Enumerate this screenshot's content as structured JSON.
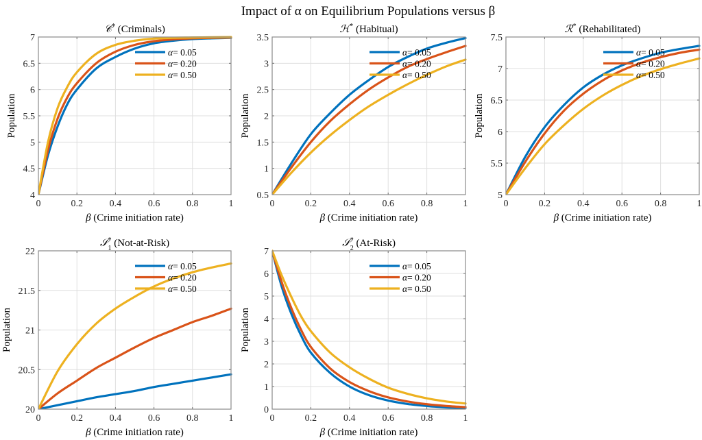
{
  "chart_data": {
    "suptitle": "Impact of α on Equilibrium Populations versus β",
    "colors": {
      "a005": "#0072BD",
      "a020": "#D95319",
      "a050": "#EDB120"
    },
    "legend_placement": "top-right",
    "panels": [
      {
        "id": "criminals",
        "type": "line",
        "title_symbol": "𝒞",
        "title_sup": "*",
        "title_sub": "",
        "title_text": " (Criminals)",
        "xlabel": "β (Crime initiation rate)",
        "ylabel": "Population",
        "xlim": [
          0,
          1
        ],
        "ylim": [
          4,
          7
        ],
        "xticks": [
          "0",
          "0.2",
          "0.4",
          "0.6",
          "0.8",
          "1"
        ],
        "yticks": [
          "4",
          "4.5",
          "5",
          "5.5",
          "6",
          "6.5",
          "7"
        ],
        "x": [
          0,
          0.05,
          0.1,
          0.15,
          0.2,
          0.3,
          0.4,
          0.5,
          0.6,
          0.7,
          0.8,
          0.9,
          1.0
        ],
        "series": [
          {
            "name": "α= 0.05",
            "color_key": "a005",
            "values": [
              4.0,
              4.75,
              5.3,
              5.72,
              6.0,
              6.4,
              6.62,
              6.78,
              6.88,
              6.93,
              6.96,
              6.975,
              6.985
            ]
          },
          {
            "name": "α= 0.20",
            "color_key": "a020",
            "values": [
              4.0,
              4.85,
              5.45,
              5.85,
              6.12,
              6.5,
              6.72,
              6.85,
              6.92,
              6.955,
              6.975,
              6.985,
              6.99
            ]
          },
          {
            "name": "α= 0.50",
            "color_key": "a050",
            "values": [
              4.0,
              5.0,
              5.65,
              6.05,
              6.33,
              6.68,
              6.85,
              6.93,
              6.97,
              6.985,
              6.99,
              6.995,
              6.998
            ]
          }
        ]
      },
      {
        "id": "habitual",
        "type": "line",
        "title_symbol": "ℋ",
        "title_sup": "*",
        "title_sub": "",
        "title_text": " (Habitual)",
        "xlabel": "β (Crime initiation rate)",
        "ylabel": "Population",
        "xlim": [
          0,
          1
        ],
        "ylim": [
          0.5,
          3.5
        ],
        "xticks": [
          "0",
          "0.2",
          "0.4",
          "0.6",
          "0.8",
          "1"
        ],
        "yticks": [
          "0.5",
          "1",
          "1.5",
          "2",
          "2.5",
          "3",
          "3.5"
        ],
        "x": [
          0,
          0.1,
          0.2,
          0.3,
          0.4,
          0.5,
          0.6,
          0.7,
          0.8,
          0.9,
          1.0
        ],
        "series": [
          {
            "name": "α= 0.05",
            "color_key": "a005",
            "values": [
              0.5,
              1.1,
              1.65,
              2.05,
              2.4,
              2.68,
              2.93,
              3.12,
              3.28,
              3.39,
              3.48
            ]
          },
          {
            "name": "α= 0.20",
            "color_key": "a020",
            "values": [
              0.5,
              1.02,
              1.5,
              1.9,
              2.22,
              2.5,
              2.73,
              2.93,
              3.08,
              3.21,
              3.33
            ]
          },
          {
            "name": "α= 0.50",
            "color_key": "a050",
            "values": [
              0.5,
              0.92,
              1.3,
              1.63,
              1.92,
              2.18,
              2.4,
              2.6,
              2.78,
              2.94,
              3.07
            ]
          }
        ]
      },
      {
        "id": "rehabilitated",
        "type": "line",
        "title_symbol": "ℛ",
        "title_sup": "*",
        "title_sub": "",
        "title_text": " (Rehabilitated)",
        "xlabel": "β (Crime initiation rate)",
        "ylabel": "Population",
        "xlim": [
          0,
          1
        ],
        "ylim": [
          5,
          7.5
        ],
        "xticks": [
          "0",
          "0.2",
          "0.4",
          "0.6",
          "0.8",
          "1"
        ],
        "yticks": [
          "5",
          "5.5",
          "6",
          "6.5",
          "7",
          "7.5"
        ],
        "x": [
          0,
          0.1,
          0.2,
          0.3,
          0.4,
          0.5,
          0.6,
          0.7,
          0.8,
          0.9,
          1.0
        ],
        "series": [
          {
            "name": "α= 0.05",
            "color_key": "a005",
            "values": [
              5.0,
              5.6,
              6.07,
              6.42,
              6.7,
              6.9,
              7.05,
              7.16,
              7.25,
              7.31,
              7.36
            ]
          },
          {
            "name": "α= 0.20",
            "color_key": "a020",
            "values": [
              5.0,
              5.52,
              5.97,
              6.33,
              6.6,
              6.81,
              6.97,
              7.09,
              7.18,
              7.25,
              7.3
            ]
          },
          {
            "name": "α= 0.50",
            "color_key": "a050",
            "values": [
              5.0,
              5.42,
              5.8,
              6.1,
              6.36,
              6.57,
              6.74,
              6.88,
              6.99,
              7.08,
              7.16
            ]
          }
        ]
      },
      {
        "id": "not-at-risk",
        "type": "line",
        "title_symbol": "𝒮",
        "title_sup": "*",
        "title_sub": "1",
        "title_text": " (Not-at-Risk)",
        "xlabel": "β (Crime initiation rate)",
        "ylabel": "Population",
        "xlim": [
          0,
          1
        ],
        "ylim": [
          20,
          22
        ],
        "xticks": [
          "0",
          "0.2",
          "0.4",
          "0.6",
          "0.8",
          "1"
        ],
        "yticks": [
          "20",
          "20.5",
          "21",
          "21.5",
          "22"
        ],
        "x": [
          0,
          0.1,
          0.2,
          0.3,
          0.4,
          0.5,
          0.6,
          0.7,
          0.8,
          0.9,
          1.0
        ],
        "series": [
          {
            "name": "α= 0.05",
            "color_key": "a005",
            "values": [
              20.0,
              20.05,
              20.1,
              20.15,
              20.19,
              20.23,
              20.28,
              20.32,
              20.36,
              20.4,
              20.44
            ]
          },
          {
            "name": "α= 0.20",
            "color_key": "a020",
            "values": [
              20.0,
              20.2,
              20.36,
              20.52,
              20.65,
              20.78,
              20.9,
              21.0,
              21.1,
              21.18,
              21.27
            ]
          },
          {
            "name": "α= 0.50",
            "color_key": "a050",
            "values": [
              20.0,
              20.48,
              20.82,
              21.08,
              21.27,
              21.42,
              21.55,
              21.65,
              21.73,
              21.79,
              21.84
            ]
          }
        ]
      },
      {
        "id": "at-risk",
        "type": "line",
        "title_symbol": "𝒮",
        "title_sup": "*",
        "title_sub": "2",
        "title_text": " (At-Risk)",
        "xlabel": "β (Crime initiation rate)",
        "ylabel": "Population",
        "xlim": [
          0,
          1
        ],
        "ylim": [
          0,
          7
        ],
        "xticks": [
          "0",
          "0.2",
          "0.4",
          "0.6",
          "0.8",
          "1"
        ],
        "yticks": [
          "0",
          "1",
          "2",
          "3",
          "4",
          "5",
          "6",
          "7"
        ],
        "x": [
          0,
          0.05,
          0.1,
          0.15,
          0.2,
          0.3,
          0.4,
          0.5,
          0.6,
          0.7,
          0.8,
          0.9,
          1.0
        ],
        "series": [
          {
            "name": "α= 0.05",
            "color_key": "a005",
            "values": [
              7.0,
              5.4,
              4.2,
              3.25,
              2.5,
              1.6,
              1.0,
              0.62,
              0.38,
              0.23,
              0.14,
              0.08,
              0.05
            ]
          },
          {
            "name": "α= 0.20",
            "color_key": "a020",
            "values": [
              7.0,
              5.6,
              4.45,
              3.5,
              2.75,
              1.8,
              1.2,
              0.8,
              0.52,
              0.34,
              0.22,
              0.14,
              0.09
            ]
          },
          {
            "name": "α= 0.50",
            "color_key": "a050",
            "values": [
              7.0,
              5.9,
              4.95,
              4.1,
              3.45,
              2.5,
              1.85,
              1.35,
              0.95,
              0.68,
              0.48,
              0.34,
              0.25
            ]
          }
        ]
      }
    ]
  }
}
